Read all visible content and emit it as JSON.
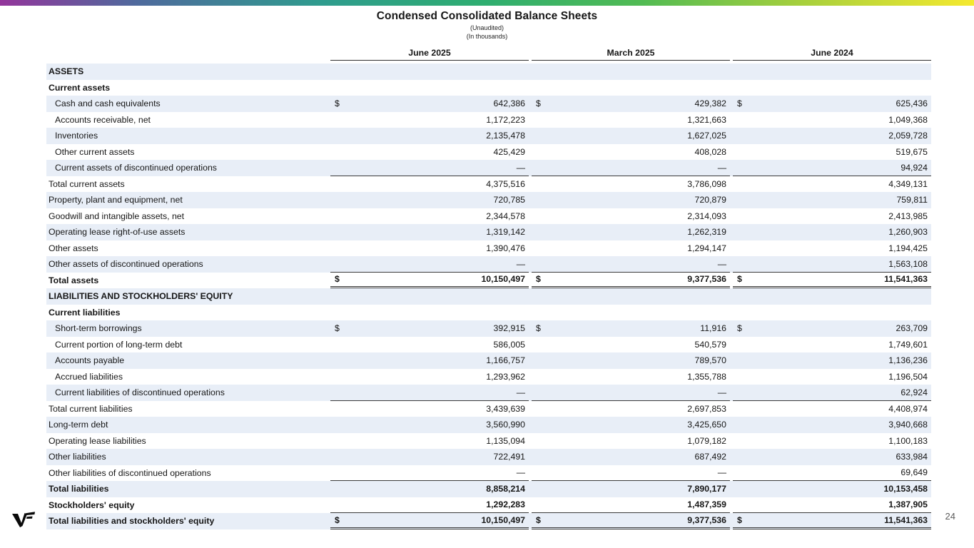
{
  "brand": {
    "logo": "vf-logo",
    "bar_gradient": [
      "#93359b",
      "#2f9c8e",
      "#2fae70",
      "#52bb53",
      "#a5cf3d",
      "#f5e92f"
    ]
  },
  "header": {
    "title": "Condensed Consolidated Balance Sheets",
    "subtitle1": "(Unaudited)",
    "subtitle2": "(In thousands)"
  },
  "columns": [
    "June 2025",
    "March 2025",
    "June 2024"
  ],
  "page": {
    "number": "24"
  },
  "colors": {
    "row_shade": "#e8eef7",
    "rule": "#3a3a3a"
  },
  "table": {
    "rows": [
      {
        "label": "ASSETS",
        "bold": true,
        "indent": false
      },
      {
        "label": "Current assets",
        "bold": true,
        "indent": false
      },
      {
        "label": "Cash and cash equivalents",
        "indent": true,
        "dollar": true,
        "values": [
          "642,386",
          "429,382",
          "625,436"
        ]
      },
      {
        "label": "Accounts receivable, net",
        "indent": true,
        "values": [
          "1,172,223",
          "1,321,663",
          "1,049,368"
        ]
      },
      {
        "label": "Inventories",
        "indent": true,
        "values": [
          "2,135,478",
          "1,627,025",
          "2,059,728"
        ]
      },
      {
        "label": "Other current assets",
        "indent": true,
        "values": [
          "425,429",
          "408,028",
          "519,675"
        ]
      },
      {
        "label": "Current assets of discontinued operations",
        "indent": true,
        "values": [
          "—",
          "—",
          "94,924"
        ],
        "rule": "single"
      },
      {
        "label": "Total current assets",
        "indent": false,
        "values": [
          "4,375,516",
          "3,786,098",
          "4,349,131"
        ]
      },
      {
        "label": "Property, plant and equipment, net",
        "indent": false,
        "values": [
          "720,785",
          "720,879",
          "759,811"
        ]
      },
      {
        "label": "Goodwill and intangible assets, net",
        "indent": false,
        "values": [
          "2,344,578",
          "2,314,093",
          "2,413,985"
        ]
      },
      {
        "label": "Operating lease right-of-use assets",
        "indent": false,
        "values": [
          "1,319,142",
          "1,262,319",
          "1,260,903"
        ]
      },
      {
        "label": "Other assets",
        "indent": false,
        "values": [
          "1,390,476",
          "1,294,147",
          "1,194,425"
        ]
      },
      {
        "label": "Other assets of discontinued operations",
        "indent": false,
        "values": [
          "—",
          "—",
          "1,563,108"
        ],
        "rule": "single"
      },
      {
        "label": "Total assets",
        "bold": true,
        "indent": false,
        "dollar": true,
        "values": [
          "10,150,497",
          "9,377,536",
          "11,541,363"
        ],
        "rule": "double"
      },
      {
        "label": "LIABILITIES AND STOCKHOLDERS' EQUITY",
        "bold": true,
        "indent": false
      },
      {
        "label": "Current liabilities",
        "bold": true,
        "indent": false
      },
      {
        "label": "Short-term borrowings",
        "indent": true,
        "dollar": true,
        "values": [
          "392,915",
          "11,916",
          "263,709"
        ]
      },
      {
        "label": "Current portion of long-term debt",
        "indent": true,
        "values": [
          "586,005",
          "540,579",
          "1,749,601"
        ]
      },
      {
        "label": "Accounts payable",
        "indent": true,
        "values": [
          "1,166,757",
          "789,570",
          "1,136,236"
        ]
      },
      {
        "label": "Accrued liabilities",
        "indent": true,
        "values": [
          "1,293,962",
          "1,355,788",
          "1,196,504"
        ]
      },
      {
        "label": "Current liabilities of discontinued operations",
        "indent": true,
        "values": [
          "—",
          "—",
          "62,924"
        ],
        "rule": "single"
      },
      {
        "label": "Total current liabilities",
        "indent": false,
        "values": [
          "3,439,639",
          "2,697,853",
          "4,408,974"
        ]
      },
      {
        "label": "Long-term debt",
        "indent": false,
        "values": [
          "3,560,990",
          "3,425,650",
          "3,940,668"
        ]
      },
      {
        "label": "Operating lease liabilities",
        "indent": false,
        "values": [
          "1,135,094",
          "1,079,182",
          "1,100,183"
        ]
      },
      {
        "label": "Other liabilities",
        "indent": false,
        "values": [
          "722,491",
          "687,492",
          "633,984"
        ]
      },
      {
        "label": "Other liabilities of discontinued operations",
        "indent": false,
        "values": [
          "—",
          "—",
          "69,649"
        ],
        "rule": "single"
      },
      {
        "label": "Total liabilities",
        "bold": true,
        "indent": false,
        "values": [
          "8,858,214",
          "7,890,177",
          "10,153,458"
        ]
      },
      {
        "label": "Stockholders' equity",
        "bold": true,
        "indent": false,
        "values": [
          "1,292,283",
          "1,487,359",
          "1,387,905"
        ],
        "rule": "single"
      },
      {
        "label": "Total liabilities and stockholders' equity",
        "bold": true,
        "indent": false,
        "dollar": true,
        "values": [
          "10,150,497",
          "9,377,536",
          "11,541,363"
        ],
        "rule": "double"
      }
    ]
  }
}
